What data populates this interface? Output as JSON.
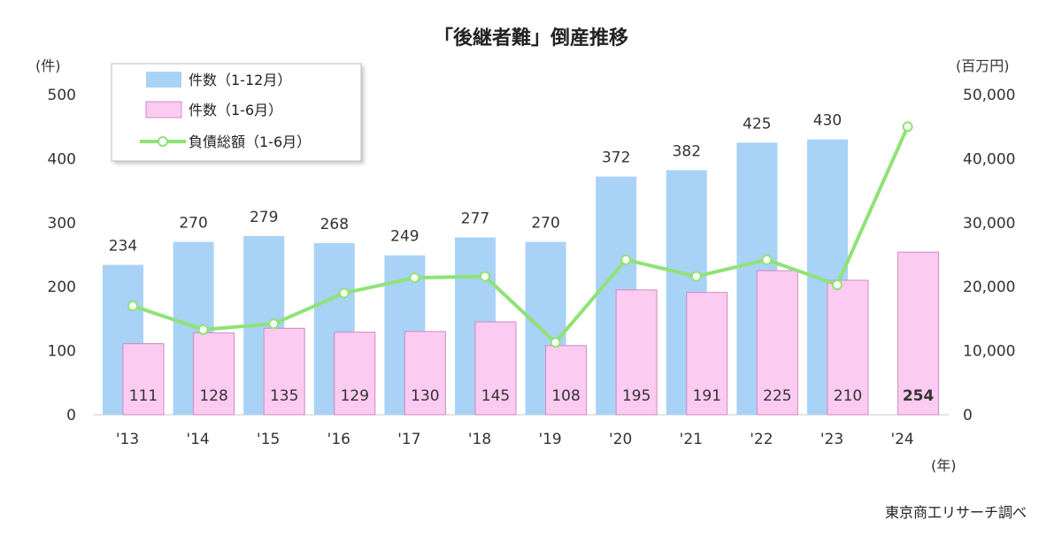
{
  "chart_data": {
    "type": "bar",
    "title": "「後継者難」倒産推移",
    "left_unit": "(件)",
    "right_unit": "(百万円)",
    "x_unit": "(年)",
    "source": "東京商工リサーチ調べ",
    "categories": [
      "'13",
      "'14",
      "'15",
      "'16",
      "'17",
      "'18",
      "'19",
      "'20",
      "'21",
      "'22",
      "'23",
      "'24"
    ],
    "y_left_ticks": [
      "0",
      "100",
      "200",
      "300",
      "400",
      "500"
    ],
    "y_right_ticks": [
      "0",
      "10,000",
      "20,000",
      "30,000",
      "40,000",
      "50,000"
    ],
    "ylim_left": [
      0,
      500
    ],
    "ylim_right": [
      0,
      50000
    ],
    "legend_placement": "top-left",
    "series": [
      {
        "name": "件数（1-12月）",
        "type": "bar",
        "axis": "left",
        "color": "#a9d2f7",
        "values": [
          234,
          270,
          279,
          268,
          249,
          277,
          270,
          372,
          382,
          425,
          430,
          null
        ]
      },
      {
        "name": "件数（1-6月）",
        "type": "bar",
        "axis": "left",
        "color": "#fccbf1",
        "values": [
          111,
          128,
          135,
          129,
          130,
          145,
          108,
          195,
          191,
          225,
          210,
          254
        ]
      },
      {
        "name": "負債総額（1-6月）",
        "type": "line",
        "axis": "right",
        "color": "#8fe275",
        "values": [
          17000,
          13300,
          14200,
          19000,
          21400,
          21600,
          11300,
          24200,
          21600,
          24200,
          20300,
          45000
        ]
      }
    ],
    "labels_full": [
      "234",
      "270",
      "279",
      "268",
      "249",
      "277",
      "270",
      "372",
      "382",
      "425",
      "430",
      ""
    ],
    "labels_half": [
      "111",
      "128",
      "135",
      "129",
      "130",
      "145",
      "108",
      "195",
      "191",
      "225",
      "210",
      "254"
    ]
  }
}
